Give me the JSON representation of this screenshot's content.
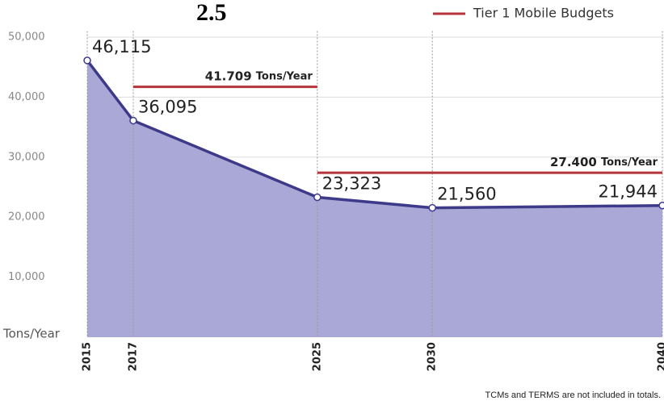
{
  "chart_data": {
    "type": "area",
    "title": "2.5",
    "y_label": "Tons/Year",
    "footnote": "TCMs and TERMS are not included in totals.",
    "x": [
      2015,
      2017,
      2025,
      2030,
      2040
    ],
    "xlim": [
      2015,
      2040
    ],
    "xticks": [
      2015,
      2017,
      2025,
      2030,
      2040
    ],
    "ylim": [
      0,
      51000
    ],
    "yticks": [
      {
        "value": 10000,
        "label": "10,000"
      },
      {
        "value": 20000,
        "label": "20,000"
      },
      {
        "value": 30000,
        "label": "30,000"
      },
      {
        "value": 40000,
        "label": "40,000"
      },
      {
        "value": 50000,
        "label": "50,000"
      }
    ],
    "grid": true,
    "series": [
      {
        "color": "#3d3a8a",
        "fill": "#aaa8d6",
        "values": [
          46115,
          36095,
          23323,
          21560,
          21944
        ],
        "value_labels": [
          "46,115",
          "36,095",
          "23,323",
          "21,560",
          "21,944"
        ]
      }
    ],
    "budgets": {
      "name": "Tier 1 Mobile Budgets",
      "color": "#b5333a",
      "legend": "upper right",
      "items": [
        {
          "value": 41709,
          "label": "41.709",
          "unit": "Tons/Year",
          "x": [
            2017,
            2025
          ]
        },
        {
          "value": 27400,
          "label": "27.400",
          "unit": "Tons/Year",
          "x": [
            2025,
            2040
          ]
        }
      ]
    }
  }
}
